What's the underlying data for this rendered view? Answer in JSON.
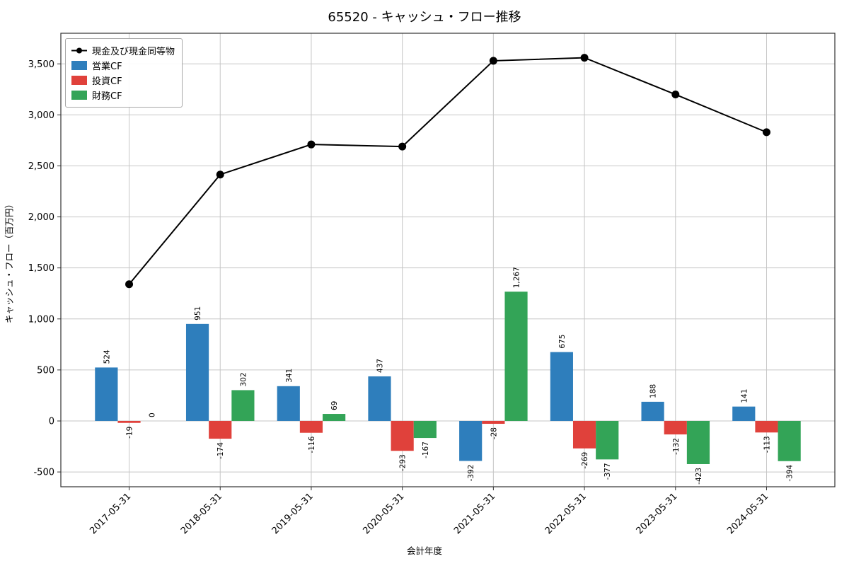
{
  "chart_data": {
    "type": "bar",
    "title": "65520 - キャッシュ・フロー推移",
    "xlabel": "会計年度",
    "ylabel": "キャッシュ・フロー（百万円）",
    "categories": [
      "2017-05-31",
      "2018-05-31",
      "2019-05-31",
      "2020-05-31",
      "2021-05-31",
      "2022-05-31",
      "2023-05-31",
      "2024-05-31"
    ],
    "series": [
      {
        "name": "営業CF",
        "color": "#2e7ebc",
        "values": [
          524,
          951,
          341,
          437,
          -392,
          675,
          188,
          141
        ]
      },
      {
        "name": "投資CF",
        "color": "#e0413b",
        "values": [
          -19,
          -174,
          -116,
          -293,
          -28,
          -269,
          -132,
          -113
        ]
      },
      {
        "name": "財務CF",
        "color": "#33a457",
        "values": [
          0,
          302,
          69,
          -167,
          1267,
          -377,
          -423,
          -394
        ]
      }
    ],
    "line_series": {
      "name": "現金及び現金同等物",
      "color": "#000000",
      "values": [
        1340,
        2415,
        2710,
        2690,
        3530,
        3560,
        3200,
        2830
      ]
    },
    "yticks": [
      -500,
      0,
      500,
      1000,
      1500,
      2000,
      2500,
      3000,
      3500
    ],
    "ylim": [
      -645,
      3800
    ],
    "grid": true,
    "legend_position": "upper left",
    "grid_color": "#c6c6c6",
    "spine_color": "#333333",
    "label_color": "#000000"
  }
}
